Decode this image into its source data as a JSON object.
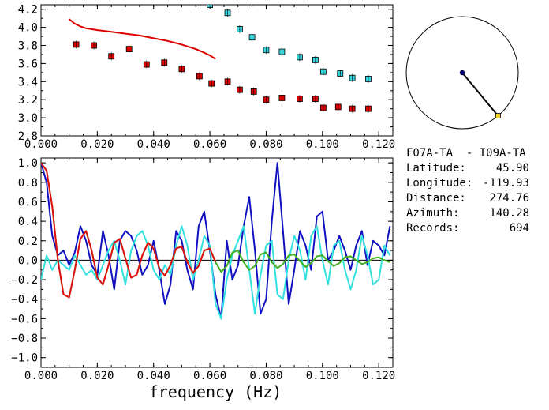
{
  "chart_data": [
    {
      "type": "scatter",
      "xlim": [
        0.0,
        0.125
      ],
      "ylim": [
        2.8,
        4.25
      ],
      "x_ticks": [
        "0.000",
        "0.020",
        "0.040",
        "0.060",
        "0.080",
        "0.100",
        "0.120"
      ],
      "y_ticks": [
        "2.8",
        "3.0",
        "3.2",
        "3.4",
        "3.6",
        "3.8",
        "4.0",
        "4.2"
      ],
      "series": [
        {
          "kind": "line",
          "color": "#dd0000",
          "x": [
            0.01,
            0.012,
            0.014,
            0.016,
            0.018,
            0.02,
            0.025,
            0.03,
            0.035,
            0.04,
            0.045,
            0.05,
            0.055,
            0.058,
            0.06,
            0.062
          ],
          "y": [
            4.09,
            4.04,
            4.01,
            3.99,
            3.98,
            3.97,
            3.95,
            3.93,
            3.91,
            3.88,
            3.85,
            3.81,
            3.76,
            3.72,
            3.69,
            3.65
          ]
        },
        {
          "kind": "markers",
          "color": "#dd0000",
          "x": [
            0.0125,
            0.0188,
            0.025,
            0.0313,
            0.0375,
            0.0438,
            0.05,
            0.0563,
            0.0606,
            0.0663,
            0.0706,
            0.0756,
            0.08,
            0.0856,
            0.0919,
            0.0975,
            0.1003,
            0.1056,
            0.1106,
            0.1163
          ],
          "y": [
            3.81,
            3.8,
            3.68,
            3.76,
            3.59,
            3.61,
            3.54,
            3.46,
            3.38,
            3.4,
            3.31,
            3.29,
            3.2,
            3.22,
            3.21,
            3.21,
            3.11,
            3.12,
            3.1,
            3.1
          ]
        },
        {
          "kind": "markers",
          "color": "#33d6dd",
          "x": [
            0.06,
            0.0663,
            0.0706,
            0.075,
            0.08,
            0.0856,
            0.0919,
            0.0975,
            0.1003,
            0.1063,
            0.1106,
            0.1163
          ],
          "y": [
            4.25,
            4.16,
            3.98,
            3.89,
            3.75,
            3.73,
            3.67,
            3.64,
            3.51,
            3.49,
            3.44,
            3.43
          ]
        }
      ]
    },
    {
      "type": "line",
      "xlabel": "frequency (Hz)",
      "xlim": [
        0.0,
        0.125
      ],
      "ylim": [
        -1.1,
        1.05
      ],
      "x_ticks": [
        "0.000",
        "0.020",
        "0.040",
        "0.060",
        "0.080",
        "0.100",
        "0.120"
      ],
      "y_ticks": [
        "1.0",
        "0.8",
        "0.6",
        "0.4",
        "0.2",
        "0.0",
        "−0.2",
        "−0.4",
        "−0.6",
        "−0.8",
        "−1.0"
      ],
      "zero_line": true,
      "series": [
        {
          "color": "#1010c0",
          "x": [
            0.0,
            0.002,
            0.004,
            0.006,
            0.008,
            0.01,
            0.012,
            0.014,
            0.016,
            0.018,
            0.02,
            0.022,
            0.024,
            0.026,
            0.028,
            0.03,
            0.032,
            0.034,
            0.036,
            0.038,
            0.04,
            0.042,
            0.044,
            0.046,
            0.048,
            0.05,
            0.052,
            0.054,
            0.056,
            0.058,
            0.06,
            0.062,
            0.064,
            0.066,
            0.068,
            0.07,
            0.072,
            0.074,
            0.076,
            0.078,
            0.08,
            0.082,
            0.084,
            0.086,
            0.088,
            0.09,
            0.092,
            0.094,
            0.096,
            0.098,
            0.1,
            0.102,
            0.104,
            0.106,
            0.108,
            0.11,
            0.112,
            0.114,
            0.116,
            0.118,
            0.12,
            0.122,
            0.124
          ],
          "y": [
            1.0,
            0.8,
            0.25,
            0.05,
            0.1,
            -0.05,
            0.08,
            0.35,
            0.2,
            -0.05,
            -0.15,
            0.3,
            0.05,
            -0.3,
            0.2,
            0.3,
            0.25,
            0.1,
            -0.15,
            -0.05,
            0.2,
            -0.1,
            -0.45,
            -0.25,
            0.3,
            0.2,
            -0.1,
            -0.3,
            0.35,
            0.5,
            0.1,
            -0.35,
            -0.6,
            0.2,
            -0.2,
            -0.05,
            0.35,
            0.65,
            0.1,
            -0.55,
            -0.4,
            0.4,
            1.0,
            0.3,
            -0.45,
            -0.1,
            0.3,
            0.15,
            -0.1,
            0.45,
            0.5,
            0.0,
            0.1,
            0.25,
            0.1,
            -0.1,
            0.15,
            0.3,
            -0.05,
            0.2,
            0.15,
            0.05,
            0.35
          ]
        },
        {
          "color": "#33e0e0",
          "x": [
            0.0,
            0.002,
            0.004,
            0.006,
            0.008,
            0.01,
            0.012,
            0.014,
            0.016,
            0.018,
            0.02,
            0.022,
            0.024,
            0.026,
            0.028,
            0.03,
            0.032,
            0.034,
            0.036,
            0.038,
            0.04,
            0.042,
            0.044,
            0.046,
            0.048,
            0.05,
            0.052,
            0.054,
            0.056,
            0.058,
            0.06,
            0.062,
            0.064,
            0.066,
            0.068,
            0.07,
            0.072,
            0.074,
            0.076,
            0.078,
            0.08,
            0.082,
            0.084,
            0.086,
            0.088,
            0.09,
            0.092,
            0.094,
            0.096,
            0.098,
            0.1,
            0.102,
            0.104,
            0.106,
            0.108,
            0.11,
            0.112,
            0.114,
            0.116,
            0.118,
            0.12,
            0.122,
            0.124
          ],
          "y": [
            -0.2,
            0.05,
            -0.1,
            0.0,
            -0.05,
            -0.1,
            0.05,
            -0.05,
            -0.15,
            -0.1,
            -0.2,
            -0.05,
            0.1,
            0.2,
            0.0,
            -0.25,
            0.1,
            0.25,
            0.3,
            0.15,
            -0.1,
            -0.2,
            -0.05,
            -0.15,
            0.15,
            0.35,
            0.15,
            -0.2,
            0.0,
            0.25,
            0.15,
            -0.45,
            -0.6,
            -0.2,
            0.05,
            0.2,
            0.35,
            -0.1,
            -0.55,
            -0.15,
            0.15,
            0.2,
            -0.35,
            -0.4,
            0.0,
            0.25,
            0.1,
            -0.2,
            0.25,
            0.35,
            0.0,
            -0.25,
            0.15,
            0.2,
            -0.1,
            -0.3,
            -0.1,
            0.25,
            0.05,
            -0.25,
            -0.2,
            0.15,
            0.05
          ]
        },
        {
          "color": "#40b020",
          "x": [
            0.0,
            0.002,
            0.004,
            0.006,
            0.008,
            0.01,
            0.012,
            0.014,
            0.016,
            0.018,
            0.02,
            0.022,
            0.024,
            0.026,
            0.028,
            0.03,
            0.032,
            0.034,
            0.036,
            0.038,
            0.04,
            0.042,
            0.044,
            0.046,
            0.048,
            0.05,
            0.052,
            0.054,
            0.056,
            0.058,
            0.06,
            0.062,
            0.064,
            0.066,
            0.068,
            0.07,
            0.072,
            0.074,
            0.076,
            0.078,
            0.08,
            0.082,
            0.084,
            0.086,
            0.088,
            0.09,
            0.092,
            0.094,
            0.096,
            0.098,
            0.1,
            0.102,
            0.104,
            0.106,
            0.108,
            0.11,
            0.112,
            0.114,
            0.116,
            0.118,
            0.12,
            0.122,
            0.124
          ],
          "y": [
            1.0,
            0.92,
            0.55,
            0.0,
            -0.35,
            -0.38,
            -0.1,
            0.22,
            0.3,
            0.1,
            -0.18,
            -0.25,
            -0.05,
            0.18,
            0.22,
            0.02,
            -0.18,
            -0.15,
            0.05,
            0.18,
            0.12,
            -0.08,
            -0.16,
            -0.05,
            0.12,
            0.14,
            -0.02,
            -0.13,
            -0.06,
            0.1,
            0.12,
            -0.02,
            -0.12,
            -0.06,
            0.08,
            0.1,
            -0.02,
            -0.1,
            -0.06,
            0.06,
            0.08,
            -0.02,
            -0.08,
            -0.04,
            0.05,
            0.06,
            -0.01,
            -0.07,
            -0.03,
            0.04,
            0.05,
            -0.01,
            -0.06,
            -0.03,
            0.03,
            0.04,
            0.0,
            -0.04,
            -0.02,
            0.02,
            0.03,
            0.0,
            -0.02
          ]
        },
        {
          "color": "#e01010",
          "x": [
            0.0,
            0.002,
            0.004,
            0.006,
            0.008,
            0.01,
            0.012,
            0.014,
            0.016,
            0.018,
            0.02,
            0.022,
            0.024,
            0.026,
            0.028,
            0.03,
            0.032,
            0.034,
            0.036,
            0.038,
            0.04,
            0.042,
            0.044,
            0.046,
            0.048,
            0.05,
            0.052,
            0.054,
            0.056,
            0.058,
            0.06,
            0.062
          ],
          "y": [
            1.0,
            0.92,
            0.55,
            0.0,
            -0.35,
            -0.38,
            -0.1,
            0.22,
            0.3,
            0.1,
            -0.18,
            -0.25,
            -0.05,
            0.18,
            0.22,
            0.02,
            -0.18,
            -0.15,
            0.05,
            0.18,
            0.12,
            -0.08,
            -0.16,
            -0.05,
            0.12,
            0.14,
            -0.02,
            -0.13,
            -0.06,
            0.1,
            0.12,
            -0.02
          ]
        }
      ]
    }
  ],
  "azimuth_plot": {
    "azimuth_deg": 140.28,
    "line_color": "#000000",
    "center_color": "#00008b",
    "end_color": "#f0d020"
  },
  "info": {
    "title": "F07A-TA  - I09A-TA",
    "rows": [
      {
        "label": "Latitude:",
        "value": "45.90"
      },
      {
        "label": "Longitude:",
        "value": "-119.93"
      },
      {
        "label": "Distance:",
        "value": "274.76"
      },
      {
        "label": "Azimuth:",
        "value": "140.28"
      },
      {
        "label": "Records:",
        "value": "694"
      }
    ]
  }
}
